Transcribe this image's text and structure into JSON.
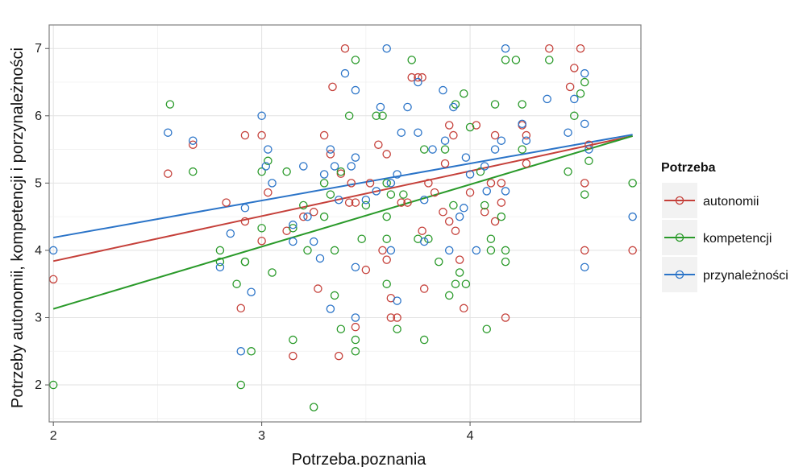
{
  "chart_data": {
    "type": "scatter",
    "title": "",
    "xlabel": "Potrzeba.poznania",
    "ylabel": "Potrzeby autonomii, kompetencji i porzynależności",
    "xlim": [
      1.98,
      4.82
    ],
    "ylim": [
      1.45,
      7.35
    ],
    "x_ticks": [
      2,
      3,
      4
    ],
    "y_ticks": [
      2,
      3,
      4,
      5,
      6,
      7
    ],
    "grid": true,
    "legend": {
      "title": "Potrzeba",
      "position": "right"
    },
    "series": [
      {
        "name": "autonomii",
        "color": "#c5403a",
        "fit": {
          "x": [
            2,
            4.78
          ],
          "y": [
            3.84,
            5.7
          ]
        },
        "points": [
          [
            2.0,
            3.57
          ],
          [
            2.55,
            5.14
          ],
          [
            2.67,
            5.57
          ],
          [
            2.83,
            4.71
          ],
          [
            2.9,
            3.14
          ],
          [
            2.92,
            4.43
          ],
          [
            2.92,
            5.71
          ],
          [
            3.0,
            5.71
          ],
          [
            3.0,
            4.14
          ],
          [
            3.03,
            4.86
          ],
          [
            3.12,
            4.29
          ],
          [
            3.15,
            2.43
          ],
          [
            3.2,
            4.5
          ],
          [
            3.25,
            4.57
          ],
          [
            3.27,
            3.43
          ],
          [
            3.3,
            5.71
          ],
          [
            3.33,
            5.43
          ],
          [
            3.34,
            6.43
          ],
          [
            3.37,
            2.43
          ],
          [
            3.38,
            5.14
          ],
          [
            3.4,
            7.0
          ],
          [
            3.42,
            4.71
          ],
          [
            3.43,
            5.0
          ],
          [
            3.45,
            4.71
          ],
          [
            3.45,
            2.86
          ],
          [
            3.5,
            3.71
          ],
          [
            3.52,
            5.0
          ],
          [
            3.56,
            5.57
          ],
          [
            3.58,
            4.0
          ],
          [
            3.6,
            3.86
          ],
          [
            3.6,
            5.43
          ],
          [
            3.62,
            3.29
          ],
          [
            3.62,
            3.0
          ],
          [
            3.65,
            3.0
          ],
          [
            3.67,
            4.71
          ],
          [
            3.7,
            4.71
          ],
          [
            3.72,
            6.57
          ],
          [
            3.75,
            6.57
          ],
          [
            3.77,
            6.57
          ],
          [
            3.77,
            4.29
          ],
          [
            3.78,
            3.43
          ],
          [
            3.8,
            5.0
          ],
          [
            3.83,
            4.86
          ],
          [
            3.87,
            4.57
          ],
          [
            3.88,
            5.29
          ],
          [
            3.9,
            5.86
          ],
          [
            3.9,
            4.43
          ],
          [
            3.92,
            5.71
          ],
          [
            3.93,
            4.29
          ],
          [
            3.95,
            3.86
          ],
          [
            3.97,
            3.14
          ],
          [
            4.0,
            4.86
          ],
          [
            4.03,
            5.86
          ],
          [
            4.07,
            4.57
          ],
          [
            4.1,
            5.0
          ],
          [
            4.12,
            5.71
          ],
          [
            4.12,
            4.43
          ],
          [
            4.15,
            4.71
          ],
          [
            4.15,
            5.0
          ],
          [
            4.17,
            3.0
          ],
          [
            4.25,
            5.86
          ],
          [
            4.27,
            5.71
          ],
          [
            4.27,
            5.29
          ],
          [
            4.38,
            7.0
          ],
          [
            4.48,
            6.43
          ],
          [
            4.5,
            6.71
          ],
          [
            4.53,
            7.0
          ],
          [
            4.55,
            5.0
          ],
          [
            4.55,
            4.0
          ],
          [
            4.57,
            5.57
          ],
          [
            4.78,
            4.0
          ]
        ]
      },
      {
        "name": "kompetencji",
        "color": "#2a9a2a",
        "fit": {
          "x": [
            2,
            4.78
          ],
          "y": [
            3.13,
            5.7
          ]
        },
        "points": [
          [
            2.0,
            2.0
          ],
          [
            2.56,
            6.17
          ],
          [
            2.67,
            5.17
          ],
          [
            2.8,
            3.83
          ],
          [
            2.8,
            4.0
          ],
          [
            2.88,
            3.5
          ],
          [
            2.9,
            2.0
          ],
          [
            2.92,
            3.83
          ],
          [
            2.92,
            3.83
          ],
          [
            2.95,
            2.5
          ],
          [
            3.0,
            5.17
          ],
          [
            3.0,
            4.33
          ],
          [
            3.03,
            5.33
          ],
          [
            3.05,
            3.67
          ],
          [
            3.12,
            5.17
          ],
          [
            3.15,
            4.33
          ],
          [
            3.15,
            2.67
          ],
          [
            3.2,
            4.67
          ],
          [
            3.22,
            4.0
          ],
          [
            3.25,
            1.67
          ],
          [
            3.3,
            5.0
          ],
          [
            3.3,
            4.5
          ],
          [
            3.33,
            4.83
          ],
          [
            3.35,
            4.0
          ],
          [
            3.35,
            3.33
          ],
          [
            3.38,
            5.17
          ],
          [
            3.38,
            2.83
          ],
          [
            3.42,
            6.0
          ],
          [
            3.45,
            6.83
          ],
          [
            3.45,
            2.67
          ],
          [
            3.45,
            2.5
          ],
          [
            3.48,
            4.17
          ],
          [
            3.5,
            4.67
          ],
          [
            3.55,
            6.0
          ],
          [
            3.58,
            6.0
          ],
          [
            3.6,
            5.0
          ],
          [
            3.6,
            4.5
          ],
          [
            3.6,
            3.5
          ],
          [
            3.6,
            4.17
          ],
          [
            3.62,
            4.83
          ],
          [
            3.65,
            2.83
          ],
          [
            3.68,
            4.83
          ],
          [
            3.72,
            6.83
          ],
          [
            3.75,
            4.17
          ],
          [
            3.78,
            2.67
          ],
          [
            3.78,
            5.5
          ],
          [
            3.8,
            4.17
          ],
          [
            3.85,
            3.83
          ],
          [
            3.88,
            5.5
          ],
          [
            3.9,
            3.33
          ],
          [
            3.92,
            4.67
          ],
          [
            3.93,
            3.5
          ],
          [
            3.93,
            6.17
          ],
          [
            3.95,
            3.67
          ],
          [
            3.97,
            6.33
          ],
          [
            3.98,
            3.5
          ],
          [
            4.0,
            5.83
          ],
          [
            4.05,
            5.17
          ],
          [
            4.07,
            4.67
          ],
          [
            4.08,
            2.83
          ],
          [
            4.1,
            4.17
          ],
          [
            4.1,
            4.0
          ],
          [
            4.12,
            6.17
          ],
          [
            4.15,
            4.5
          ],
          [
            4.17,
            3.83
          ],
          [
            4.17,
            4.0
          ],
          [
            4.17,
            6.83
          ],
          [
            4.22,
            6.83
          ],
          [
            4.25,
            5.5
          ],
          [
            4.25,
            6.17
          ],
          [
            4.38,
            6.83
          ],
          [
            4.47,
            5.17
          ],
          [
            4.5,
            6.0
          ],
          [
            4.53,
            6.33
          ],
          [
            4.55,
            6.5
          ],
          [
            4.55,
            4.83
          ],
          [
            4.57,
            5.33
          ],
          [
            4.78,
            5.0
          ]
        ]
      },
      {
        "name": "przynależności",
        "color": "#2b74c8",
        "fit": {
          "x": [
            2,
            4.78
          ],
          "y": [
            4.19,
            5.72
          ]
        },
        "points": [
          [
            2.0,
            4.0
          ],
          [
            2.55,
            5.75
          ],
          [
            2.67,
            5.63
          ],
          [
            2.8,
            3.75
          ],
          [
            2.85,
            4.25
          ],
          [
            2.9,
            2.5
          ],
          [
            2.92,
            4.63
          ],
          [
            2.95,
            3.38
          ],
          [
            3.0,
            6.0
          ],
          [
            3.02,
            5.25
          ],
          [
            3.03,
            5.5
          ],
          [
            3.05,
            5.0
          ],
          [
            3.15,
            4.38
          ],
          [
            3.15,
            4.13
          ],
          [
            3.2,
            5.25
          ],
          [
            3.22,
            4.5
          ],
          [
            3.25,
            4.13
          ],
          [
            3.28,
            3.88
          ],
          [
            3.3,
            5.13
          ],
          [
            3.33,
            3.13
          ],
          [
            3.33,
            5.5
          ],
          [
            3.35,
            5.25
          ],
          [
            3.37,
            4.75
          ],
          [
            3.4,
            6.63
          ],
          [
            3.43,
            5.25
          ],
          [
            3.45,
            5.38
          ],
          [
            3.45,
            3.75
          ],
          [
            3.45,
            6.38
          ],
          [
            3.45,
            3.0
          ],
          [
            3.5,
            4.75
          ],
          [
            3.55,
            4.88
          ],
          [
            3.57,
            6.13
          ],
          [
            3.6,
            7.0
          ],
          [
            3.62,
            5.0
          ],
          [
            3.62,
            4.0
          ],
          [
            3.65,
            5.13
          ],
          [
            3.65,
            3.25
          ],
          [
            3.67,
            5.75
          ],
          [
            3.7,
            6.13
          ],
          [
            3.75,
            6.5
          ],
          [
            3.75,
            5.75
          ],
          [
            3.78,
            4.75
          ],
          [
            3.78,
            4.13
          ],
          [
            3.82,
            5.5
          ],
          [
            3.87,
            6.38
          ],
          [
            3.88,
            5.63
          ],
          [
            3.9,
            4.0
          ],
          [
            3.92,
            6.13
          ],
          [
            3.95,
            4.5
          ],
          [
            3.97,
            4.63
          ],
          [
            3.98,
            5.38
          ],
          [
            4.0,
            5.13
          ],
          [
            4.03,
            4.0
          ],
          [
            4.07,
            5.25
          ],
          [
            4.08,
            4.88
          ],
          [
            4.12,
            5.5
          ],
          [
            4.15,
            5.63
          ],
          [
            4.17,
            7.0
          ],
          [
            4.17,
            4.88
          ],
          [
            4.25,
            5.88
          ],
          [
            4.27,
            5.63
          ],
          [
            4.37,
            6.25
          ],
          [
            4.47,
            5.75
          ],
          [
            4.5,
            6.25
          ],
          [
            4.55,
            6.63
          ],
          [
            4.55,
            3.75
          ],
          [
            4.55,
            5.88
          ],
          [
            4.57,
            5.5
          ],
          [
            4.78,
            4.5
          ]
        ]
      }
    ]
  }
}
